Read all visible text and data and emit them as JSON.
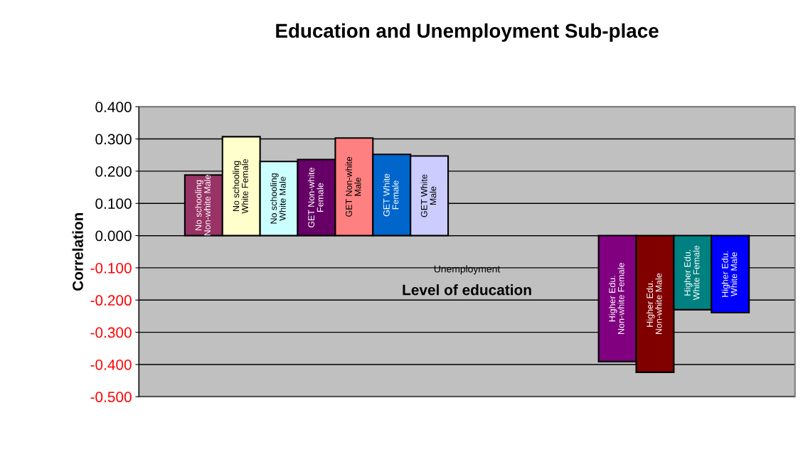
{
  "chart_data": {
    "type": "bar",
    "title": "Education and Unemployment Sub-place",
    "xlabel": "Level of education",
    "ylabel": "Correlation",
    "categories": [
      "Unemployment"
    ],
    "series": [
      {
        "name": "No schooling Non-white Male",
        "color": "#993366",
        "values": [
          0.188
        ]
      },
      {
        "name": "No schooling White Female",
        "color": "#ffffcc",
        "values": [
          0.307
        ]
      },
      {
        "name": "No schooling White Male",
        "color": "#ccffff",
        "values": [
          0.23
        ]
      },
      {
        "name": "GET Non-white Female",
        "color": "#660066",
        "values": [
          0.236
        ]
      },
      {
        "name": "GET Non-white Male",
        "color": "#ff8080",
        "values": [
          0.303
        ]
      },
      {
        "name": "GET White Female",
        "color": "#0066cc",
        "values": [
          0.252
        ]
      },
      {
        "name": "GET White Male",
        "color": "#ccccff",
        "values": [
          0.247
        ]
      },
      {
        "values": [
          null
        ]
      },
      {
        "values": [
          null
        ]
      },
      {
        "values": [
          null
        ]
      },
      {
        "values": [
          null
        ]
      },
      {
        "name": "Higher Edu. Non-white Female",
        "color": "#800080",
        "values": [
          -0.391
        ]
      },
      {
        "name": "Higher Edu. Non-white Male",
        "color": "#800000",
        "values": [
          -0.424
        ]
      },
      {
        "name": "Higher Edu. White Female",
        "color": "#008080",
        "values": [
          -0.23
        ]
      },
      {
        "name": "Higher Edu. White Male",
        "color": "#0000ff",
        "values": [
          -0.239
        ]
      }
    ],
    "ylim": [
      -0.5,
      0.4
    ],
    "yticks": [
      {
        "value": -0.5,
        "label": "-0.500"
      },
      {
        "value": -0.4,
        "label": "-0.400"
      },
      {
        "value": -0.3,
        "label": "-0.300"
      },
      {
        "value": -0.2,
        "label": "-0.200"
      },
      {
        "value": -0.1,
        "label": "-0.100"
      },
      {
        "value": 0.0,
        "label": "0.000"
      },
      {
        "value": 0.1,
        "label": "0.100"
      },
      {
        "value": 0.2,
        "label": "0.200"
      },
      {
        "value": 0.3,
        "label": "0.300"
      },
      {
        "value": 0.4,
        "label": "0.400"
      }
    ],
    "grid": "y",
    "legend": false
  }
}
